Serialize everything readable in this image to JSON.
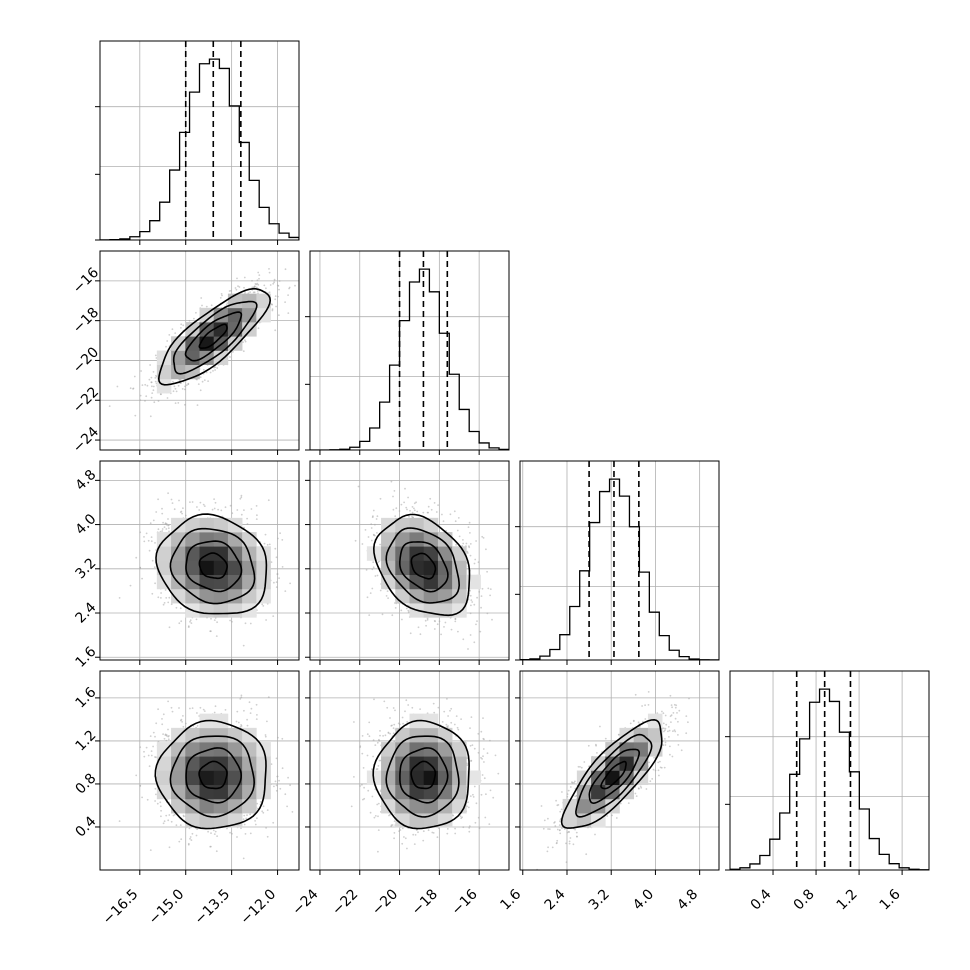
{
  "chart_data": {
    "type": "corner",
    "grid": true,
    "parameters": [
      {
        "index": 0,
        "range": [
          -17.8,
          -11.3
        ],
        "ticks": [
          -16.5,
          -15.0,
          -13.5,
          -12.0
        ],
        "tick_labels": [
          "−16.5",
          "−15.0",
          "−13.5",
          "−12.0"
        ],
        "quantiles": [
          -15.0,
          -14.1,
          -13.2
        ],
        "mean": -14.1,
        "sd": 0.9
      },
      {
        "index": 1,
        "range": [
          -24.5,
          -14.5
        ],
        "ticks": [
          -24,
          -22,
          -20,
          -18,
          -16
        ],
        "tick_labels": [
          "−24",
          "−22",
          "−20",
          "−18",
          "−16"
        ],
        "quantiles": [
          -20.0,
          -18.8,
          -17.6
        ],
        "mean": -18.8,
        "sd": 1.2
      },
      {
        "index": 2,
        "range": [
          1.55,
          5.15
        ],
        "ticks": [
          1.6,
          2.4,
          3.2,
          4.0,
          4.8
        ],
        "tick_labels": [
          "1.6",
          "2.4",
          "3.2",
          "4.0",
          "4.8"
        ],
        "quantiles": [
          2.8,
          3.25,
          3.7
        ],
        "mean": 3.25,
        "sd": 0.45
      },
      {
        "index": 3,
        "range": [
          0.0,
          1.85
        ],
        "ticks": [
          0.4,
          0.8,
          1.2,
          1.6
        ],
        "tick_labels": [
          "0.4",
          "0.8",
          "1.2",
          "1.6"
        ],
        "quantiles": [
          0.62,
          0.88,
          1.12
        ],
        "mean": 0.88,
        "sd": 0.25
      }
    ],
    "correlations": [
      {
        "pair": [
          0,
          1
        ],
        "rho": 0.8
      },
      {
        "pair": [
          0,
          2
        ],
        "rho": -0.12
      },
      {
        "pair": [
          1,
          2
        ],
        "rho": -0.3
      },
      {
        "pair": [
          0,
          3
        ],
        "rho": 0.0
      },
      {
        "pair": [
          1,
          3
        ],
        "rho": 0.0
      },
      {
        "pair": [
          2,
          3
        ],
        "rho": 0.8
      }
    ],
    "contour_levels_sigma": [
      0.5,
      1.0,
      1.5,
      2.0
    ]
  }
}
